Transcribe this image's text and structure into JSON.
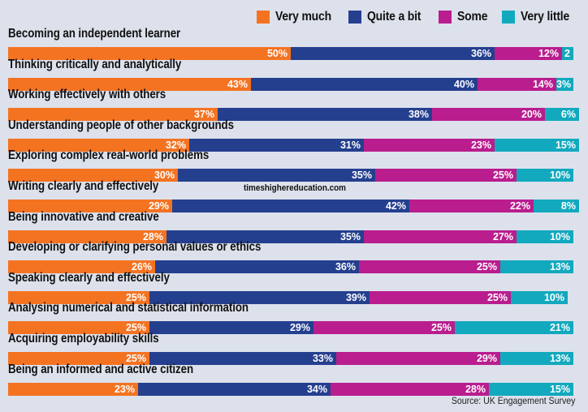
{
  "chart_data": {
    "type": "bar",
    "orientation": "horizontal",
    "stacked": true,
    "title": "",
    "xlabel": "",
    "ylabel": "",
    "xlim": [
      0,
      100
    ],
    "legend_position": "top-right",
    "categories": [
      "Becoming an independent learner",
      "Thinking critically and analytically",
      "Working effectively with others",
      "Understanding people of other backgrounds",
      "Exploring complex real-world problems",
      "Writing clearly and effectively",
      "Being innovative and creative",
      "Developing or clarifying personal values or ethics",
      "Speaking clearly and effectively",
      "Analysing numerical and statistical information",
      "Acquiring employability skills",
      "Being an informed and active citizen"
    ],
    "series": [
      {
        "name": "Very much",
        "color": "#f47321",
        "values": [
          50,
          43,
          37,
          32,
          30,
          29,
          28,
          26,
          25,
          25,
          25,
          23
        ]
      },
      {
        "name": "Quite a bit",
        "color": "#253f8f",
        "values": [
          36,
          40,
          38,
          31,
          35,
          42,
          35,
          36,
          39,
          29,
          33,
          34
        ]
      },
      {
        "name": "Some",
        "color": "#b91d8e",
        "values": [
          12,
          14,
          20,
          23,
          25,
          22,
          27,
          25,
          25,
          25,
          29,
          28
        ]
      },
      {
        "name": "Very little",
        "color": "#12a9be",
        "values": [
          2,
          3,
          6,
          15,
          10,
          8,
          10,
          13,
          10,
          21,
          13,
          15
        ]
      }
    ],
    "data_labels": [
      [
        "50%",
        "36%",
        "12%",
        "2"
      ],
      [
        "43%",
        "40%",
        "14%",
        "3%"
      ],
      [
        "37%",
        "38%",
        "20%",
        "6%"
      ],
      [
        "32%",
        "31%",
        "23%",
        "15%"
      ],
      [
        "30%",
        "35%",
        "25%",
        "10%"
      ],
      [
        "29%",
        "42%",
        "22%",
        "8%"
      ],
      [
        "28%",
        "35%",
        "27%",
        "10%"
      ],
      [
        "26%",
        "36%",
        "25%",
        "13%"
      ],
      [
        "25%",
        "39%",
        "25%",
        "10%"
      ],
      [
        "25%",
        "29%",
        "25%",
        "21%"
      ],
      [
        "25%",
        "33%",
        "29%",
        "13%"
      ],
      [
        "23%",
        "34%",
        "28%",
        "15%"
      ]
    ]
  },
  "watermark": "timeshighereducation.com",
  "source": "Source: UK Engagement Survey"
}
